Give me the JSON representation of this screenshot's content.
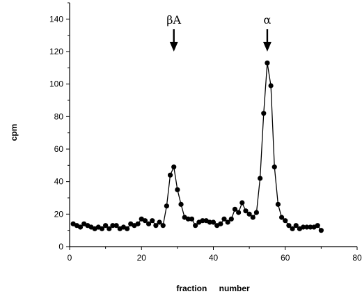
{
  "chart_data": {
    "type": "line",
    "title": "",
    "xlabel": "fraction number",
    "ylabel": "cpm",
    "xlim": [
      0,
      80
    ],
    "ylim": [
      0,
      150
    ],
    "xticks": [
      0,
      20,
      40,
      60,
      80
    ],
    "yticks": [
      0,
      20,
      40,
      60,
      80,
      100,
      120,
      140
    ],
    "grid": false,
    "marker": "filled-circle",
    "color": "#000000",
    "series": [
      {
        "x": [
          1,
          2,
          3,
          4,
          5,
          6,
          7,
          8,
          9,
          10,
          11,
          12,
          13,
          14,
          15,
          16,
          17,
          18,
          19,
          20,
          21,
          22,
          23,
          24,
          25,
          26,
          27,
          28,
          29,
          30,
          31,
          32,
          33,
          34,
          35,
          36,
          37,
          38,
          39,
          40,
          41,
          42,
          43,
          44,
          45,
          46,
          47,
          48,
          49,
          50,
          51,
          52,
          53,
          54,
          55,
          56,
          57,
          58,
          59,
          60,
          61,
          62,
          63,
          64,
          65,
          66,
          67,
          68,
          69,
          70
        ],
        "y": [
          14,
          13,
          12,
          14,
          13,
          12,
          11,
          12,
          11,
          13,
          11,
          13,
          13,
          11,
          12,
          11,
          14,
          13,
          14,
          17,
          16,
          14,
          16,
          13,
          15,
          13,
          25,
          44,
          49,
          35,
          26,
          18,
          17,
          17,
          13,
          15,
          16,
          16,
          15,
          15,
          13,
          14,
          17,
          15,
          17,
          23,
          21,
          27,
          22,
          20,
          18,
          21,
          42,
          82,
          113,
          99,
          49,
          26,
          18,
          16,
          13,
          11,
          13,
          11,
          12,
          12,
          12,
          12,
          13,
          10
        ]
      }
    ],
    "annotations": [
      {
        "label": "βA",
        "x": 29,
        "arrow": true
      },
      {
        "label": "α",
        "x": 55,
        "arrow": true
      }
    ]
  }
}
